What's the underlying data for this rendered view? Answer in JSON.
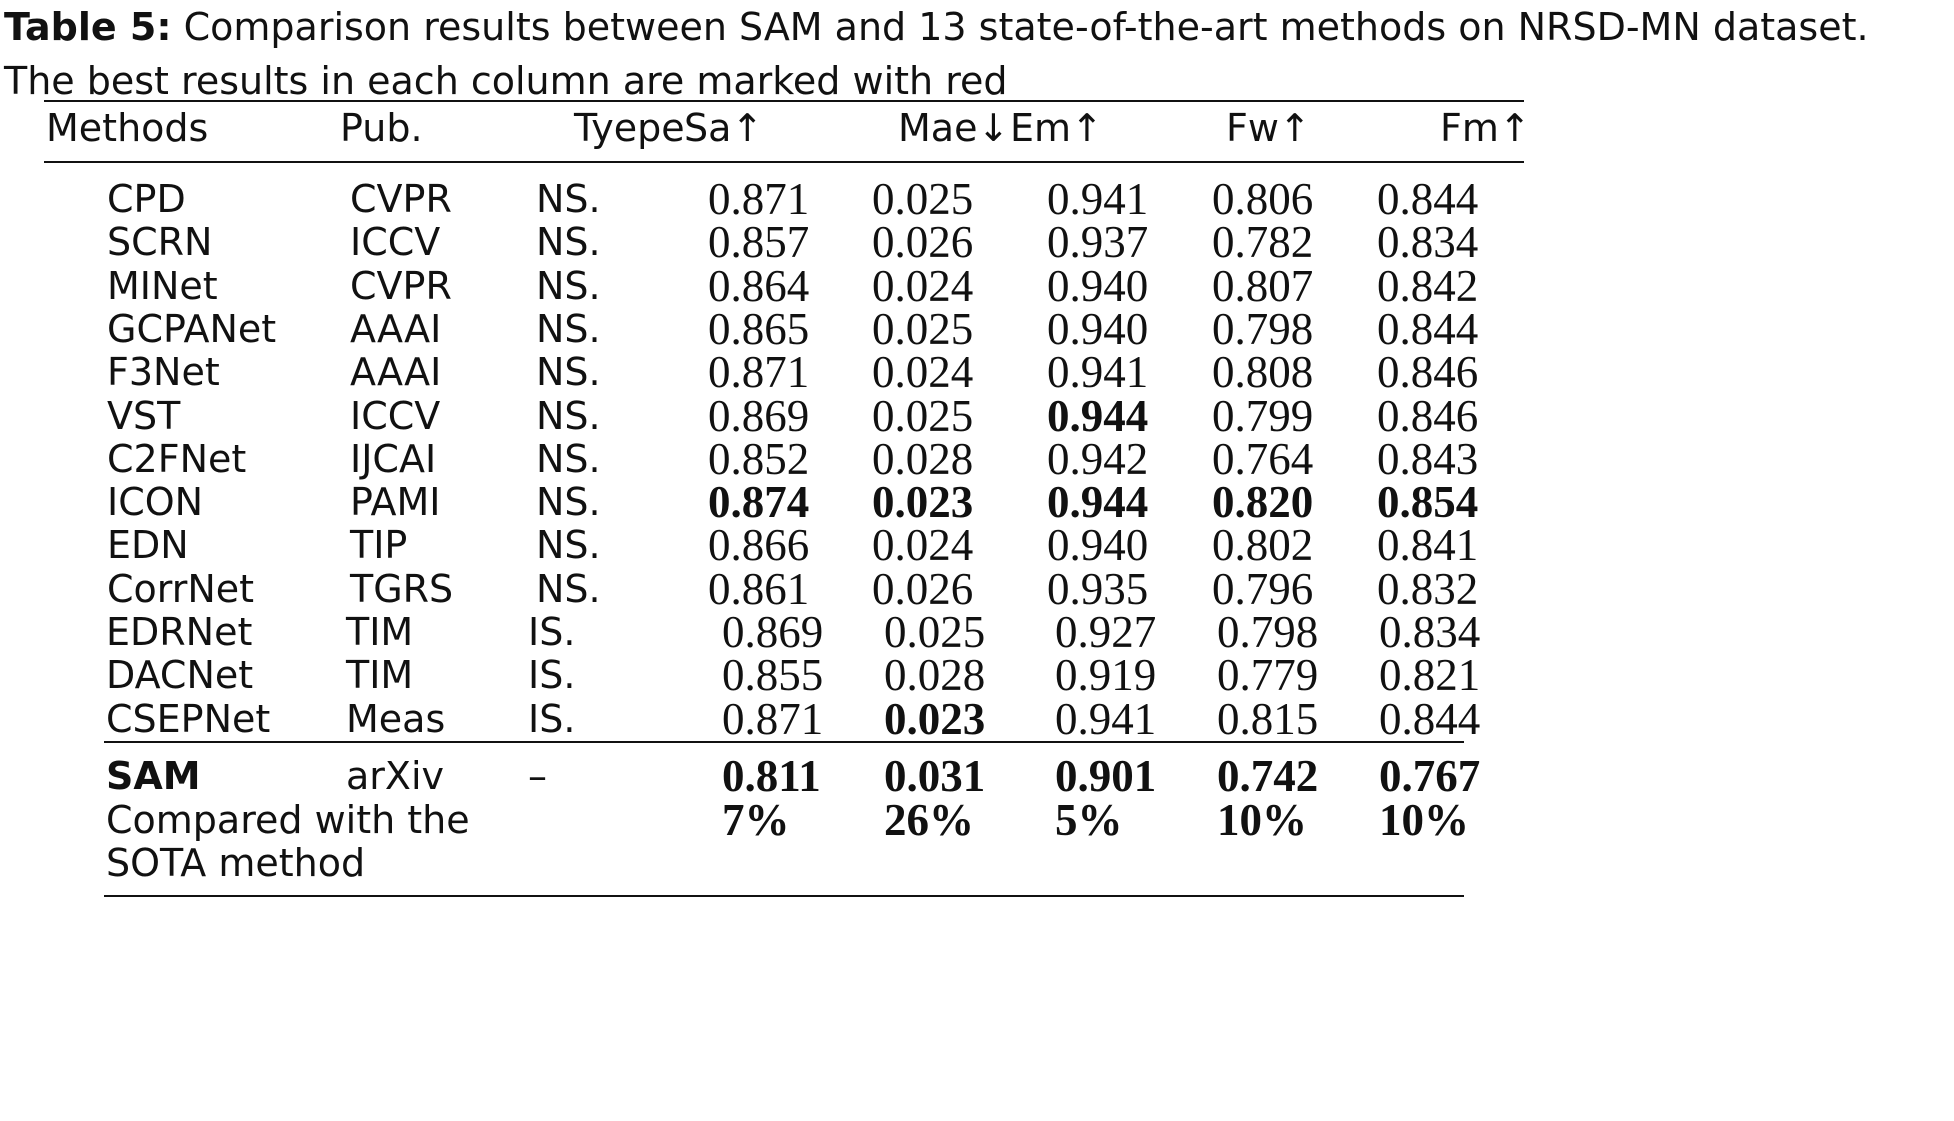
{
  "caption": {
    "label": "Table 5:",
    "text": " Comparison results between SAM and 13 state-of-the-art methods on NRSD-MN dataset.",
    "text2": "The best results in each column are marked with red"
  },
  "columns": [
    "Methods",
    "Pub.",
    "Tyepe",
    "Sa↑",
    "Mae↓",
    "Em↑",
    "Fw↑",
    "Fm↑"
  ],
  "rows": [
    {
      "method": "CPD",
      "pub": "CVPR",
      "type": "NS.",
      "sa": "0.871",
      "mae": "0.025",
      "em": "0.941",
      "fw": "0.806",
      "fm": "0.844",
      "bold": []
    },
    {
      "method": "SCRN",
      "pub": "ICCV",
      "type": "NS.",
      "sa": "0.857",
      "mae": "0.026",
      "em": "0.937",
      "fw": "0.782",
      "fm": "0.834",
      "bold": []
    },
    {
      "method": "MINet",
      "pub": "CVPR",
      "type": "NS.",
      "sa": "0.864",
      "mae": "0.024",
      "em": "0.940",
      "fw": "0.807",
      "fm": "0.842",
      "bold": []
    },
    {
      "method": "GCPANet",
      "pub": "AAAI",
      "type": "NS.",
      "sa": "0.865",
      "mae": "0.025",
      "em": "0.940",
      "fw": "0.798",
      "fm": "0.844",
      "bold": []
    },
    {
      "method": "F3Net",
      "pub": "AAAI",
      "type": "NS.",
      "sa": "0.871",
      "mae": "0.024",
      "em": "0.941",
      "fw": "0.808",
      "fm": "0.846",
      "bold": []
    },
    {
      "method": "VST",
      "pub": "ICCV",
      "type": "NS.",
      "sa": "0.869",
      "mae": "0.025",
      "em": "0.944",
      "fw": "0.799",
      "fm": "0.846",
      "bold": [
        "em"
      ]
    },
    {
      "method": "C2FNet",
      "pub": "IJCAI",
      "type": "NS.",
      "sa": "0.852",
      "mae": "0.028",
      "em": "0.942",
      "fw": "0.764",
      "fm": "0.843",
      "bold": []
    },
    {
      "method": "ICON",
      "pub": "PAMI",
      "type": "NS.",
      "sa": "0.874",
      "mae": "0.023",
      "em": "0.944",
      "fw": "0.820",
      "fm": "0.854",
      "bold": [
        "sa",
        "mae",
        "em",
        "fw",
        "fm"
      ]
    },
    {
      "method": "EDN",
      "pub": "TIP",
      "type": "NS.",
      "sa": "0.866",
      "mae": "0.024",
      "em": "0.940",
      "fw": "0.802",
      "fm": "0.841",
      "bold": []
    },
    {
      "method": "CorrNet",
      "pub": "TGRS",
      "type": "NS.",
      "sa": "0.861",
      "mae": "0.026",
      "em": "0.935",
      "fw": "0.796",
      "fm": "0.832",
      "bold": []
    },
    {
      "method": "EDRNet",
      "pub": "TIM",
      "type": "IS.",
      "sa": "0.869",
      "mae": "0.025",
      "em": "0.927",
      "fw": "0.798",
      "fm": "0.834",
      "bold": []
    },
    {
      "method": "DACNet",
      "pub": "TIM",
      "type": "IS.",
      "sa": "0.855",
      "mae": "0.028",
      "em": "0.919",
      "fw": "0.779",
      "fm": "0.821",
      "bold": []
    },
    {
      "method": "CSEPNet",
      "pub": "Meas",
      "type": "IS.",
      "sa": "0.871",
      "mae": "0.023",
      "em": "0.941",
      "fw": "0.815",
      "fm": "0.844",
      "bold": [
        "mae"
      ]
    }
  ],
  "sam_row": {
    "method": "SAM",
    "pub": "arXiv",
    "type": "–",
    "sa": "0.811",
    "mae": "0.031",
    "em": "0.901",
    "fw": "0.742",
    "fm": "0.767"
  },
  "compare_row": {
    "label_line1": "Compared with the",
    "label_line2": "SOTA method",
    "sa": "7%",
    "mae": "26%",
    "em": "5%",
    "fw": "10%",
    "fm": "10%"
  }
}
